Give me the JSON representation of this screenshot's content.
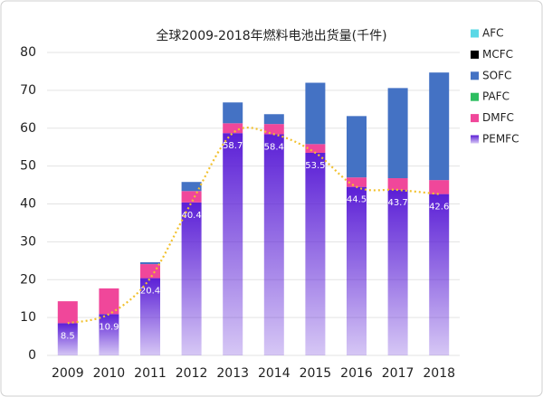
{
  "chart_data": {
    "type": "stacked-bar",
    "title": "全球2009-2018年燃料电池出货量(千件)",
    "categories": [
      "2009",
      "2010",
      "2011",
      "2012",
      "2013",
      "2014",
      "2015",
      "2016",
      "2017",
      "2018"
    ],
    "series": [
      {
        "name": "PEMFC",
        "color": "#5b1fd6",
        "values": [
          8.5,
          10.9,
          20.4,
          40.4,
          58.7,
          58.4,
          53.5,
          44.5,
          43.7,
          42.6
        ],
        "data_labels": true
      },
      {
        "name": "DMFC",
        "color": "#f0479a",
        "values": [
          5.8,
          6.8,
          3.7,
          3.0,
          2.6,
          2.7,
          2.3,
          2.5,
          3.1,
          3.7
        ]
      },
      {
        "name": "PAFC",
        "color": "#2dbe60",
        "values": [
          0,
          0,
          0,
          0,
          0,
          0,
          0,
          0,
          0,
          0
        ]
      },
      {
        "name": "SOFC",
        "color": "#4472c4",
        "values": [
          0,
          0,
          0.5,
          2.4,
          5.5,
          2.6,
          16.2,
          16.2,
          23.8,
          28.4
        ]
      },
      {
        "name": "MCFC",
        "color": "#000000",
        "values": [
          0,
          0,
          0,
          0,
          0,
          0,
          0,
          0,
          0,
          0
        ]
      },
      {
        "name": "AFC",
        "color": "#5ad8e6",
        "values": [
          0,
          0,
          0,
          0,
          0,
          0,
          0,
          0,
          0,
          0
        ]
      }
    ],
    "trend_color": "#f2c12e",
    "ylim": [
      0,
      80
    ],
    "yticks": [
      0,
      10,
      20,
      30,
      40,
      50,
      60,
      70,
      80
    ],
    "grid": true,
    "legend": "right"
  }
}
